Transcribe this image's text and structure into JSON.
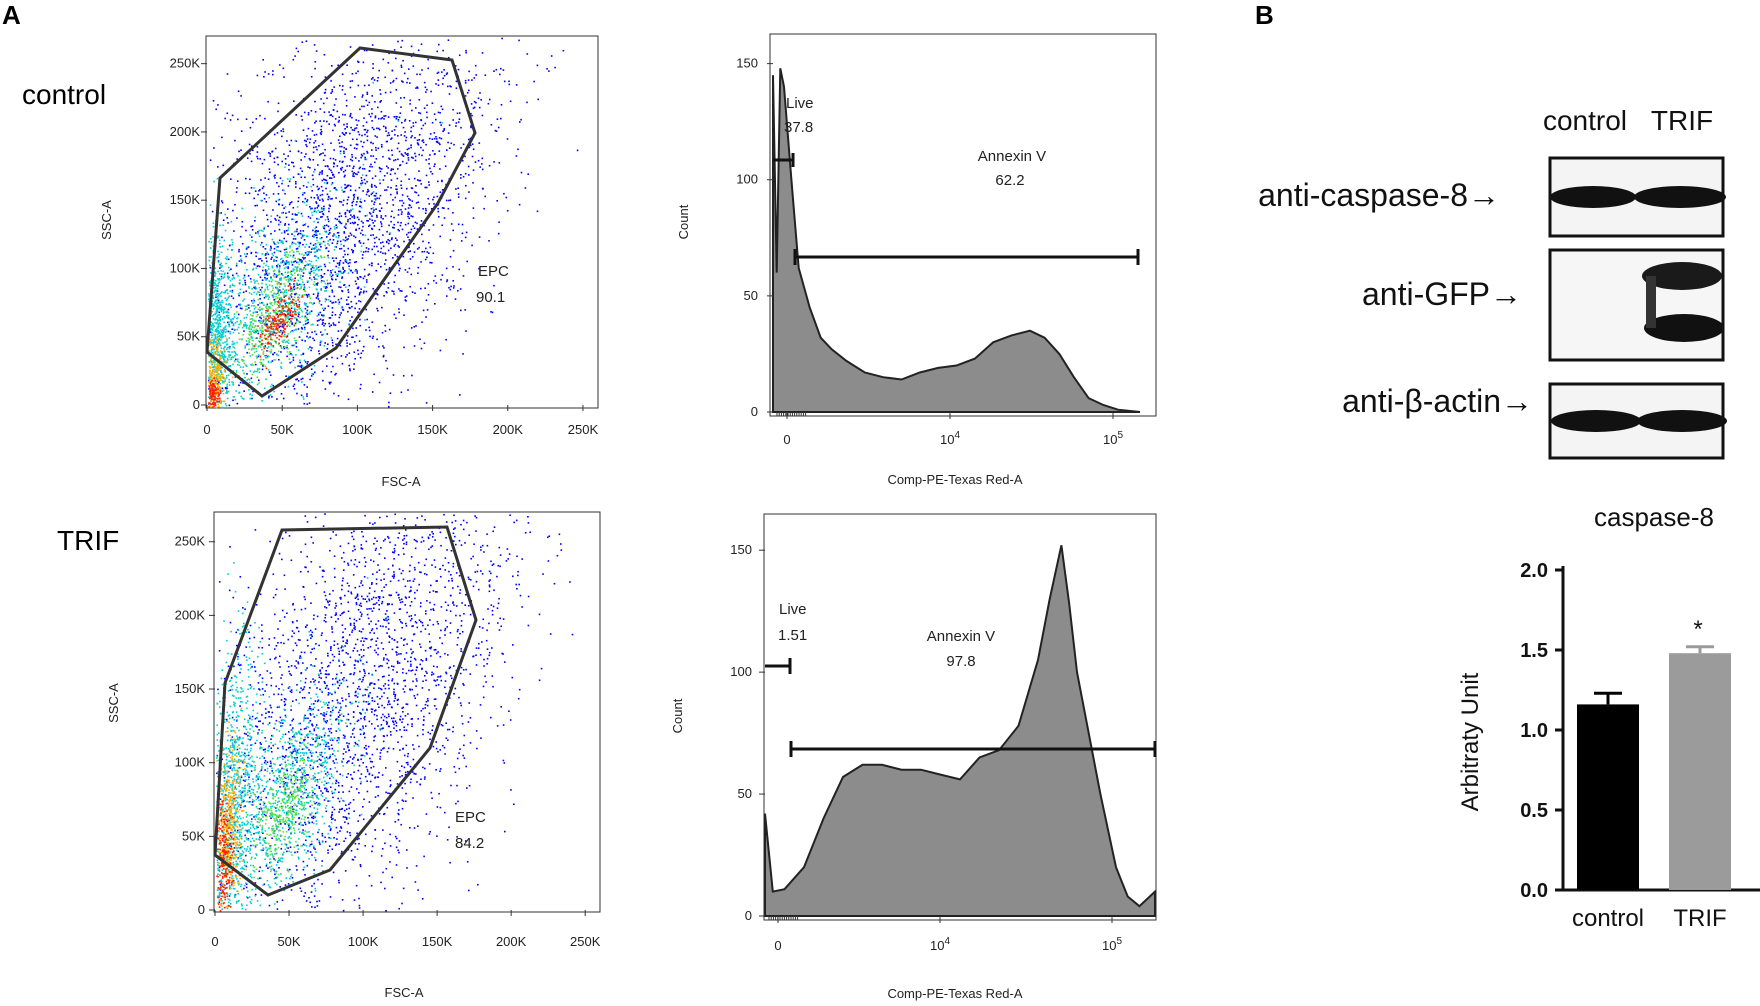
{
  "panel_labels": {
    "a": "A",
    "b": "B"
  },
  "row_labels": {
    "control": "control",
    "trif": "TRIF"
  },
  "colors": {
    "gate": "#333333",
    "histogram_fill": "#8c8c8c",
    "bar_control": "#000000",
    "bar_trif": "#9b9b9b",
    "density_low": "#0000ff",
    "density_mid": "#00d0d0",
    "density_high": "#ff2000"
  },
  "scatter_axes": {
    "xlabel": "FSC-A",
    "ylabel": "SSC-A",
    "xticks": [
      "0",
      "50K",
      "100K",
      "150K",
      "200K",
      "250K"
    ],
    "yticks": [
      "0",
      "50K",
      "100K",
      "150K",
      "200K",
      "250K"
    ]
  },
  "hist_axes": {
    "xlabel": "Comp-PE-Texas Red-A",
    "ylabel": "Count",
    "xticks": [
      "0",
      "10",
      "10"
    ],
    "xtick_exponents": [
      "",
      "4",
      "5"
    ],
    "yticks": [
      "0",
      "50",
      "100",
      "150"
    ]
  },
  "gates": {
    "control_epc": {
      "name": "EPC",
      "value": "90.1"
    },
    "trif_epc": {
      "name": "EPC",
      "value": "84.2"
    },
    "control_live": {
      "name": "Live",
      "value": "37.8"
    },
    "control_annexin": {
      "name": "Annexin V",
      "value": "62.2"
    },
    "trif_live": {
      "name": "Live",
      "value": "1.51"
    },
    "trif_annexin": {
      "name": "Annexin V",
      "value": "97.8"
    }
  },
  "western_blot": {
    "lanes": [
      "control",
      "TRIF"
    ],
    "bands": [
      "anti-caspase-8→",
      "anti-GFP→",
      "anti-β-actin→"
    ]
  },
  "chart_data": [
    {
      "type": "scatter",
      "title": "control",
      "xlabel": "FSC-A",
      "ylabel": "SSC-A",
      "xlim": [
        0,
        260000
      ],
      "ylim": [
        0,
        260000
      ],
      "gate": "EPC",
      "gate_percent": 90.1
    },
    {
      "type": "area",
      "title": "control",
      "xlabel": "Comp-PE-Texas Red-A",
      "ylabel": "Count",
      "ylim": [
        0,
        155
      ],
      "x_position": [
        0.0,
        0.01,
        0.02,
        0.03,
        0.05,
        0.07,
        0.1,
        0.13,
        0.16,
        0.2,
        0.25,
        0.3,
        0.35,
        0.4,
        0.45,
        0.5,
        0.55,
        0.6,
        0.65,
        0.7,
        0.74,
        0.78,
        0.82,
        0.86,
        0.9,
        0.94,
        1.0
      ],
      "counts": [
        145,
        60,
        148,
        140,
        100,
        62,
        45,
        32,
        27,
        22,
        17,
        15,
        14,
        17,
        19,
        20,
        23,
        30,
        33,
        35,
        32,
        25,
        15,
        6,
        3,
        1,
        0
      ],
      "gates": [
        {
          "name": "Live",
          "percent": 37.8
        },
        {
          "name": "Annexin V",
          "percent": 62.2
        }
      ]
    },
    {
      "type": "scatter",
      "title": "TRIF",
      "xlabel": "FSC-A",
      "ylabel": "SSC-A",
      "xlim": [
        0,
        260000
      ],
      "ylim": [
        0,
        260000
      ],
      "gate": "EPC",
      "gate_percent": 84.2
    },
    {
      "type": "area",
      "title": "TRIF",
      "xlabel": "Comp-PE-Texas Red-A",
      "ylabel": "Count",
      "ylim": [
        0,
        155
      ],
      "x_position": [
        0.0,
        0.02,
        0.05,
        0.1,
        0.15,
        0.2,
        0.25,
        0.3,
        0.35,
        0.4,
        0.45,
        0.5,
        0.55,
        0.6,
        0.65,
        0.7,
        0.73,
        0.76,
        0.78,
        0.8,
        0.83,
        0.86,
        0.9,
        0.93,
        0.96,
        1.0
      ],
      "counts": [
        42,
        10,
        11,
        20,
        40,
        57,
        62,
        62,
        60,
        60,
        58,
        56,
        65,
        68,
        78,
        105,
        130,
        152,
        128,
        100,
        75,
        50,
        20,
        8,
        4,
        10
      ],
      "gates": [
        {
          "name": "Live",
          "percent": 1.51
        },
        {
          "name": "Annexin V",
          "percent": 97.8
        }
      ]
    },
    {
      "type": "bar",
      "title": "caspase-8",
      "categories": [
        "control",
        "TRIF"
      ],
      "values": [
        1.16,
        1.48
      ],
      "errors": [
        0.07,
        0.04
      ],
      "ylabel": "Arbitraty Unit",
      "ylim": [
        0,
        2.0
      ],
      "yticks": [
        "0.0",
        "0.5",
        "1.0",
        "1.5",
        "2.0"
      ],
      "significance": {
        "category": "TRIF",
        "mark": "*"
      }
    }
  ]
}
